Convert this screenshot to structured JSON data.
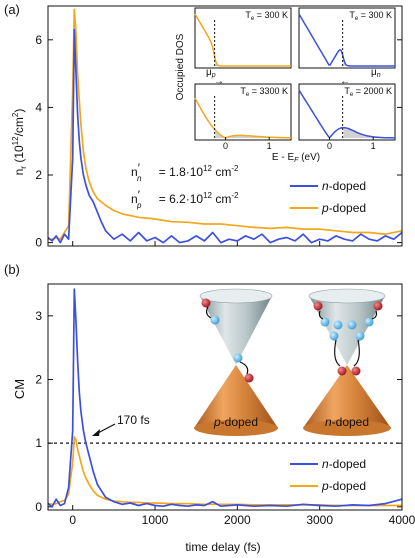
{
  "colors": {
    "n_doped": "#3c50e0",
    "p_doped": "#f2a81d",
    "cone": "#d3893c",
    "cone_top": "#9fb4b8",
    "electron": "#5ab4e6",
    "hole": "#c8202a",
    "shade": "#d2d2d2"
  },
  "chart_data": [
    {
      "panel_label": "(a)",
      "type": "line",
      "ylabel": "n_r (10^12/cm^2)",
      "ylabel_parts": {
        "main": "n",
        "sub": "r",
        "rest": " (10",
        "sup": "12",
        "unit": "/cm",
        "sup2": "2",
        "close": ")"
      },
      "xlim": [
        -300,
        4000
      ],
      "ylim": [
        -0.1,
        7
      ],
      "yticks": [
        "0",
        "2",
        "4",
        "6"
      ],
      "x_tick_values": [
        0,
        1000,
        2000,
        3000,
        4000
      ],
      "series": [
        {
          "name": "n-doped",
          "x": [
            -300,
            -250,
            -200,
            -150,
            -100,
            -50,
            0,
            20,
            40,
            60,
            80,
            100,
            130,
            160,
            200,
            250,
            300,
            350,
            400,
            500,
            600,
            700,
            800,
            900,
            1000,
            1100,
            1200,
            1300,
            1400,
            1500,
            1600,
            1700,
            1800,
            1900,
            2000,
            2100,
            2200,
            2300,
            2400,
            2500,
            2600,
            2700,
            2800,
            2900,
            3000,
            3100,
            3200,
            3300,
            3400,
            3500,
            3600,
            3700,
            3800,
            3900,
            4000
          ],
          "y": [
            0.15,
            0.05,
            0.2,
            0.0,
            0.25,
            0.1,
            2.5,
            6.3,
            5.0,
            3.8,
            3.0,
            2.5,
            2.0,
            1.7,
            1.4,
            1.2,
            0.9,
            0.6,
            0.35,
            0.1,
            0.25,
            0.05,
            0.3,
            0.05,
            0.15,
            0.0,
            0.2,
            0.0,
            0.05,
            0.2,
            0.05,
            0.3,
            0.0,
            0.1,
            0.05,
            0.2,
            0.1,
            0.25,
            0.0,
            0.1,
            0.15,
            0.05,
            0.25,
            0.0,
            0.1,
            0.05,
            0.2,
            0.1,
            0.05,
            0.25,
            0.1,
            0.05,
            0.2,
            0.1,
            0.3
          ]
        },
        {
          "name": "p-doped",
          "x": [
            -300,
            -250,
            -200,
            -150,
            -100,
            -50,
            0,
            20,
            40,
            60,
            80,
            100,
            130,
            160,
            200,
            250,
            300,
            400,
            500,
            600,
            800,
            1000,
            1200,
            1400,
            1600,
            1800,
            2000,
            2200,
            2400,
            2600,
            2800,
            3000,
            3200,
            3400,
            3600,
            3800,
            4000
          ],
          "y": [
            0.1,
            0.1,
            0.15,
            0.1,
            0.3,
            0.5,
            4.5,
            6.9,
            6.2,
            5.0,
            4.2,
            3.5,
            2.7,
            2.2,
            1.8,
            1.5,
            1.3,
            1.1,
            0.95,
            0.85,
            0.75,
            0.7,
            0.62,
            0.6,
            0.55,
            0.55,
            0.5,
            0.45,
            0.42,
            0.45,
            0.4,
            0.4,
            0.35,
            0.3,
            0.3,
            0.25,
            0.35
          ]
        }
      ],
      "legend": [
        {
          "label": "n-doped",
          "letter": "n",
          "suffix": "-doped"
        },
        {
          "label": "p-doped",
          "letter": "p",
          "suffix": "-doped"
        }
      ],
      "legend_position": "bottom-right",
      "annotations": {
        "n_label": {
          "main": "n",
          "sub": "n",
          "prime": "′",
          "value": " = 1.8·10",
          "sup": "12",
          "unit": " cm",
          "sup2": "-2"
        },
        "p_label": {
          "main": "n",
          "sub": "p",
          "prime": "′",
          "value": " = 6.2·10",
          "sup": "12",
          "unit": " cm",
          "sup2": "-2"
        }
      },
      "inset": {
        "ylabel": "Occupied DOS",
        "xlabel": "E - E_F (eV)",
        "xlabel_parts": {
          "main": "E - E",
          "sub": "F",
          "rest": " (eV)"
        },
        "xlim": [
          -0.7,
          1.5
        ],
        "xticks": [
          "0",
          "1"
        ],
        "mu_p": "μ_p",
        "mu_n": "μ_n",
        "panels": [
          {
            "te": "T_e = 300 K",
            "te_main": "T",
            "te_sub": "e",
            "te_rest": " = 300 K",
            "series": "p-doped",
            "temp": 300
          },
          {
            "te": "T_e = 300 K",
            "te_main": "T",
            "te_sub": "e",
            "te_rest": " = 300 K",
            "series": "n-doped",
            "temp": 300
          },
          {
            "te": "T_e = 3300 K",
            "te_main": "T",
            "te_sub": "e",
            "te_rest": " = 3300 K",
            "series": "p-doped",
            "temp": 3300
          },
          {
            "te": "T_e = 2000 K",
            "te_main": "T",
            "te_sub": "e",
            "te_rest": " = 2000 K",
            "series": "n-doped",
            "temp": 2000
          }
        ]
      }
    },
    {
      "panel_label": "(b)",
      "type": "line",
      "ylabel": "CM",
      "xlabel": "time delay (fs)",
      "xlim": [
        -300,
        4000
      ],
      "ylim": [
        -0.05,
        3.5
      ],
      "yticks": [
        "0",
        "1",
        "2",
        "3"
      ],
      "xticks": [
        "0",
        "1000",
        "2000",
        "3000",
        "4000"
      ],
      "reference_line": {
        "y": 1,
        "style": "dashed"
      },
      "annotation": "170 fs",
      "series": [
        {
          "name": "n-doped",
          "x": [
            -300,
            -250,
            -200,
            -150,
            -100,
            -50,
            0,
            20,
            40,
            60,
            80,
            100,
            130,
            160,
            200,
            250,
            300,
            400,
            500,
            600,
            700,
            800,
            900,
            1000,
            1100,
            1200,
            1300,
            1400,
            1500,
            1600,
            1700,
            1800,
            1900,
            2000,
            2200,
            2400,
            2600,
            2800,
            3000,
            3200,
            3400,
            3600,
            3800,
            4000
          ],
          "y": [
            0.05,
            0.0,
            0.12,
            0.02,
            0.05,
            0.3,
            1.2,
            3.42,
            2.9,
            2.3,
            1.8,
            1.5,
            1.2,
            1.0,
            0.8,
            0.55,
            0.35,
            0.15,
            0.08,
            0.04,
            0.06,
            0.02,
            0.05,
            0.02,
            0.01,
            0.04,
            0.02,
            0.01,
            0.03,
            0.02,
            0.08,
            0.01,
            0.02,
            0.03,
            0.01,
            0.02,
            0.01,
            0.04,
            0.02,
            0.01,
            0.03,
            0.02,
            0.05,
            0.12
          ]
        },
        {
          "name": "p-doped",
          "x": [
            -300,
            -250,
            -200,
            -150,
            -100,
            -50,
            0,
            20,
            40,
            60,
            80,
            100,
            130,
            160,
            200,
            250,
            300,
            400,
            500,
            600,
            700,
            800,
            900,
            1000,
            1200,
            1400,
            1600,
            1800,
            2000,
            2200,
            2400,
            2600,
            2800,
            3000,
            3200,
            3400,
            3600,
            3800,
            4000
          ],
          "y": [
            0.05,
            0.04,
            0.05,
            0.08,
            0.1,
            0.2,
            0.7,
            1.1,
            1.05,
            0.9,
            0.8,
            0.7,
            0.55,
            0.45,
            0.35,
            0.25,
            0.18,
            0.12,
            0.09,
            0.08,
            0.07,
            0.07,
            0.06,
            0.06,
            0.05,
            0.05,
            0.04,
            0.04,
            0.04,
            0.03,
            0.03,
            0.03,
            0.03,
            0.03,
            0.02,
            0.02,
            0.02,
            0.02,
            0.02
          ]
        }
      ],
      "legend": [
        {
          "label": "n-doped",
          "letter": "n",
          "suffix": "-doped"
        },
        {
          "label": "p-doped",
          "letter": "p",
          "suffix": "-doped"
        }
      ],
      "legend_position": "bottom-right",
      "cones": [
        {
          "label": "p-doped",
          "letter": "p",
          "suffix": "-doped"
        },
        {
          "label": "n-doped",
          "letter": "n",
          "suffix": "-doped"
        }
      ]
    }
  ]
}
